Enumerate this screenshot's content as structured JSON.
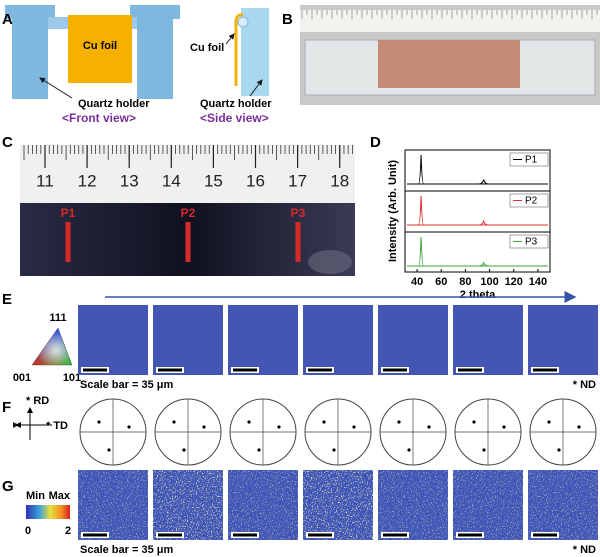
{
  "panel_labels": [
    "A",
    "B",
    "C",
    "D",
    "E",
    "F",
    "G"
  ],
  "front_view": {
    "foil": "Cu foil",
    "holder": "Quartz holder",
    "caption": "<Front view>"
  },
  "side_view": {
    "foil": "Cu foil",
    "holder": "Quartz holder",
    "caption": "<Side view>"
  },
  "ruler": {
    "ticks": [
      11,
      12,
      13,
      14,
      15,
      16,
      17,
      18
    ]
  },
  "positions": [
    "P1",
    "P2",
    "P3"
  ],
  "xrd": {
    "ylabel": "Intensity (Arb. Unit)",
    "xlabel": "2 theta",
    "xlim": [
      30,
      150
    ],
    "xticks": [
      40,
      60,
      80,
      100,
      120,
      140
    ],
    "ylim": [
      0,
      1.1
    ],
    "series": [
      {
        "name": "P1",
        "color": "#000000",
        "x": [
          43.3,
          95.1
        ],
        "values": [
          1,
          0.15
        ]
      },
      {
        "name": "P2",
        "color": "#e03030",
        "x": [
          43.3,
          95.1
        ],
        "values": [
          1,
          0.13
        ]
      },
      {
        "name": "P3",
        "color": "#3aa83a",
        "x": [
          43.3,
          95.1
        ],
        "values": [
          1,
          0.11
        ]
      }
    ]
  },
  "orientation": {
    "ipf_labels": [
      "111",
      "001",
      "101"
    ],
    "scale_bar": "Scale bar = 35 μm",
    "direction": "* ND",
    "maps": 7
  },
  "pole_figure": {
    "rd": "* RD",
    "td": "* TD"
  },
  "kam": {
    "min": "Min",
    "max": "Max",
    "ticks": [
      0,
      2
    ],
    "scale_bar": "Scale bar = 35 μm",
    "direction": "* ND"
  }
}
